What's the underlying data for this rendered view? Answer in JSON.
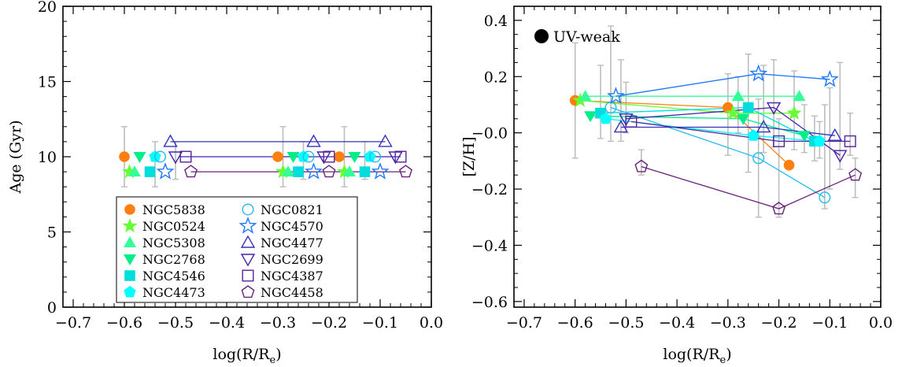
{
  "chart_data": [
    {
      "type": "scatter",
      "xlabel": "log(R/R_e)",
      "ylabel": "Age (Gyr)",
      "xlim": [
        -0.72,
        0.0
      ],
      "ylim": [
        0,
        20
      ],
      "xticks": [
        "-0.7",
        "-0.6",
        "-0.5",
        "-0.4",
        "-0.3",
        "-0.2",
        "-0.1",
        "0.0"
      ],
      "yticks": [
        "0",
        "5",
        "10",
        "15",
        "20"
      ],
      "legend": {
        "placement": "bottom-center",
        "columns": 2
      },
      "series": [
        {
          "name": "NGC5838",
          "color": "#ff7f0e",
          "marker": "circle",
          "filled": true,
          "x": [
            -0.6,
            -0.3,
            -0.18
          ],
          "y": [
            10.0,
            10.0,
            10.0
          ]
        },
        {
          "name": "NGC0524",
          "color": "#66ff33",
          "marker": "star",
          "filled": true,
          "x": [
            -0.59,
            -0.29,
            -0.17
          ],
          "y": [
            9.0,
            9.0,
            9.0
          ]
        },
        {
          "name": "NGC5308",
          "color": "#33ff99",
          "marker": "triangle-up",
          "filled": true,
          "x": [
            -0.58,
            -0.28,
            -0.16
          ],
          "y": [
            9.0,
            9.0,
            9.0
          ]
        },
        {
          "name": "NGC2768",
          "color": "#00ee88",
          "marker": "triangle-down",
          "filled": true,
          "x": [
            -0.57,
            -0.27,
            -0.15
          ],
          "y": [
            10.0,
            10.0,
            10.0
          ]
        },
        {
          "name": "NGC4546",
          "color": "#00dddd",
          "marker": "square",
          "filled": true,
          "x": [
            -0.55,
            -0.26,
            -0.13
          ],
          "y": [
            9.0,
            9.0,
            9.0
          ]
        },
        {
          "name": "NGC4473",
          "color": "#00ffff",
          "marker": "pentagon",
          "filled": true,
          "x": [
            -0.54,
            -0.25,
            -0.12
          ],
          "y": [
            10.0,
            10.0,
            10.0
          ]
        },
        {
          "name": "NGC0821",
          "color": "#22bbee",
          "marker": "circle",
          "filled": false,
          "x": [
            -0.53,
            -0.24,
            -0.11
          ],
          "y": [
            10.0,
            10.0,
            10.0
          ]
        },
        {
          "name": "NGC4570",
          "color": "#1e77ff",
          "marker": "star",
          "filled": false,
          "x": [
            -0.52,
            -0.23,
            -0.1
          ],
          "y": [
            9.0,
            9.0,
            9.0
          ]
        },
        {
          "name": "NGC4477",
          "color": "#3333bb",
          "marker": "triangle-up",
          "filled": false,
          "x": [
            -0.51,
            -0.23,
            -0.09
          ],
          "y": [
            11.0,
            11.0,
            11.0
          ]
        },
        {
          "name": "NGC2699",
          "color": "#4422aa",
          "marker": "triangle-down",
          "filled": false,
          "x": [
            -0.5,
            -0.21,
            -0.07
          ],
          "y": [
            10.0,
            10.0,
            10.0
          ]
        },
        {
          "name": "NGC4387",
          "color": "#55229a",
          "marker": "square",
          "filled": false,
          "x": [
            -0.48,
            -0.2,
            -0.06
          ],
          "y": [
            10.0,
            10.0,
            10.0
          ]
        },
        {
          "name": "NGC4458",
          "color": "#66227a",
          "marker": "pentagon",
          "filled": false,
          "x": [
            -0.47,
            -0.2,
            -0.05
          ],
          "y": [
            9.0,
            9.0,
            9.0
          ]
        }
      ],
      "connecting_lines": [
        {
          "y": 11.0,
          "x": [
            -0.51,
            -0.09
          ],
          "color": "#3333bb"
        },
        {
          "y": 10.0,
          "x": [
            -0.49,
            -0.06
          ],
          "color": "#4422aa"
        },
        {
          "y": 9.0,
          "x": [
            -0.47,
            -0.05
          ],
          "color": "#66227a"
        }
      ],
      "errorbars": [
        {
          "x": -0.6,
          "lo": 8.0,
          "hi": 12.0
        },
        {
          "x": -0.54,
          "lo": 8.0,
          "hi": 11.0
        },
        {
          "x": -0.5,
          "lo": 8.5,
          "hi": 11.0
        },
        {
          "x": -0.29,
          "lo": 8.0,
          "hi": 12.0
        },
        {
          "x": -0.25,
          "lo": 8.5,
          "hi": 11.0
        },
        {
          "x": -0.17,
          "lo": 8.0,
          "hi": 12.0
        },
        {
          "x": -0.13,
          "lo": 8.5,
          "hi": 11.0
        }
      ]
    },
    {
      "type": "scatter",
      "xlabel": "log(R/R_e)",
      "ylabel": "[Z/H]",
      "xlim": [
        -0.72,
        0.0
      ],
      "ylim": [
        -0.62,
        0.45
      ],
      "xticks": [
        "-0.7",
        "-0.6",
        "-0.5",
        "-0.4",
        "-0.3",
        "-0.2",
        "-0.1",
        "0.0"
      ],
      "yticks": [
        "-0.6",
        "-0.4",
        "-0.2",
        "-0.0",
        "0.2",
        "0.4"
      ],
      "annotation": "UV-weak",
      "series": [
        {
          "name": "NGC5838",
          "color": "#ff7f0e",
          "marker": "circle",
          "filled": true,
          "x": [
            -0.6,
            -0.3,
            -0.18
          ],
          "y": [
            0.115,
            0.09,
            -0.115
          ]
        },
        {
          "name": "NGC0524",
          "color": "#66ff33",
          "marker": "star",
          "filled": true,
          "x": [
            -0.59,
            -0.29,
            -0.17
          ],
          "y": [
            0.115,
            0.07,
            0.07
          ]
        },
        {
          "name": "NGC5308",
          "color": "#33ff99",
          "marker": "triangle-up",
          "filled": true,
          "x": [
            -0.58,
            -0.28,
            -0.16
          ],
          "y": [
            0.13,
            0.13,
            0.13
          ]
        },
        {
          "name": "NGC2768",
          "color": "#00ee88",
          "marker": "triangle-down",
          "filled": true,
          "x": [
            -0.57,
            -0.27,
            -0.15
          ],
          "y": [
            0.06,
            0.05,
            -0.01
          ]
        },
        {
          "name": "NGC4546",
          "color": "#00dddd",
          "marker": "square",
          "filled": true,
          "x": [
            -0.55,
            -0.26,
            -0.13
          ],
          "y": [
            0.07,
            0.09,
            -0.03
          ]
        },
        {
          "name": "NGC4473",
          "color": "#00ffff",
          "marker": "pentagon",
          "filled": true,
          "x": [
            -0.54,
            -0.25,
            -0.12
          ],
          "y": [
            0.05,
            -0.01,
            -0.03
          ]
        },
        {
          "name": "NGC0821",
          "color": "#22bbee",
          "marker": "circle",
          "filled": false,
          "x": [
            -0.53,
            -0.24,
            -0.11
          ],
          "y": [
            0.09,
            -0.09,
            -0.23
          ]
        },
        {
          "name": "NGC4570",
          "color": "#1e77ff",
          "marker": "star",
          "filled": false,
          "x": [
            -0.52,
            -0.24,
            -0.1
          ],
          "y": [
            0.13,
            0.21,
            0.19
          ]
        },
        {
          "name": "NGC4477",
          "color": "#3333bb",
          "marker": "triangle-up",
          "filled": false,
          "x": [
            -0.51,
            -0.23,
            -0.09
          ],
          "y": [
            0.02,
            0.02,
            -0.01
          ]
        },
        {
          "name": "NGC2699",
          "color": "#4422aa",
          "marker": "triangle-down",
          "filled": false,
          "x": [
            -0.5,
            -0.21,
            -0.08
          ],
          "y": [
            0.05,
            0.09,
            -0.08
          ]
        },
        {
          "name": "NGC4387",
          "color": "#55229a",
          "marker": "square",
          "filled": false,
          "x": [
            -0.49,
            -0.2,
            -0.06
          ],
          "y": [
            0.04,
            -0.03,
            -0.03
          ]
        },
        {
          "name": "NGC4458",
          "color": "#66227a",
          "marker": "pentagon",
          "filled": false,
          "x": [
            -0.47,
            -0.2,
            -0.05
          ],
          "y": [
            -0.12,
            -0.27,
            -0.15
          ]
        }
      ],
      "errorbars": [
        {
          "x": -0.6,
          "lo": -0.09,
          "hi": 0.32
        },
        {
          "x": -0.55,
          "lo": -0.02,
          "hi": 0.24
        },
        {
          "x": -0.53,
          "lo": -0.03,
          "hi": 0.38
        },
        {
          "x": -0.51,
          "lo": -0.03,
          "hi": 0.26
        },
        {
          "x": -0.5,
          "lo": 0.0,
          "hi": 0.18
        },
        {
          "x": -0.47,
          "lo": -0.15,
          "hi": -0.06
        },
        {
          "x": -0.3,
          "lo": -0.08,
          "hi": 0.21
        },
        {
          "x": -0.28,
          "lo": 0.0,
          "hi": 0.2
        },
        {
          "x": -0.26,
          "lo": -0.14,
          "hi": 0.28
        },
        {
          "x": -0.24,
          "lo": -0.3,
          "hi": 0.12
        },
        {
          "x": -0.23,
          "lo": -0.07,
          "hi": 0.24
        },
        {
          "x": -0.21,
          "lo": -0.05,
          "hi": 0.26
        },
        {
          "x": -0.2,
          "lo": -0.3,
          "hi": 0.05
        },
        {
          "x": -0.17,
          "lo": -0.06,
          "hi": 0.22
        },
        {
          "x": -0.15,
          "lo": -0.07,
          "hi": 0.1
        },
        {
          "x": -0.13,
          "lo": -0.1,
          "hi": 0.06
        },
        {
          "x": -0.12,
          "lo": -0.09,
          "hi": 0.04
        },
        {
          "x": -0.11,
          "lo": -0.27,
          "hi": 0.1
        },
        {
          "x": -0.1,
          "lo": -0.2,
          "hi": 0.16
        },
        {
          "x": -0.08,
          "lo": -0.13,
          "hi": 0.25
        },
        {
          "x": -0.06,
          "lo": -0.08,
          "hi": 0.07
        },
        {
          "x": -0.05,
          "lo": -0.23,
          "hi": -0.09
        }
      ]
    }
  ]
}
